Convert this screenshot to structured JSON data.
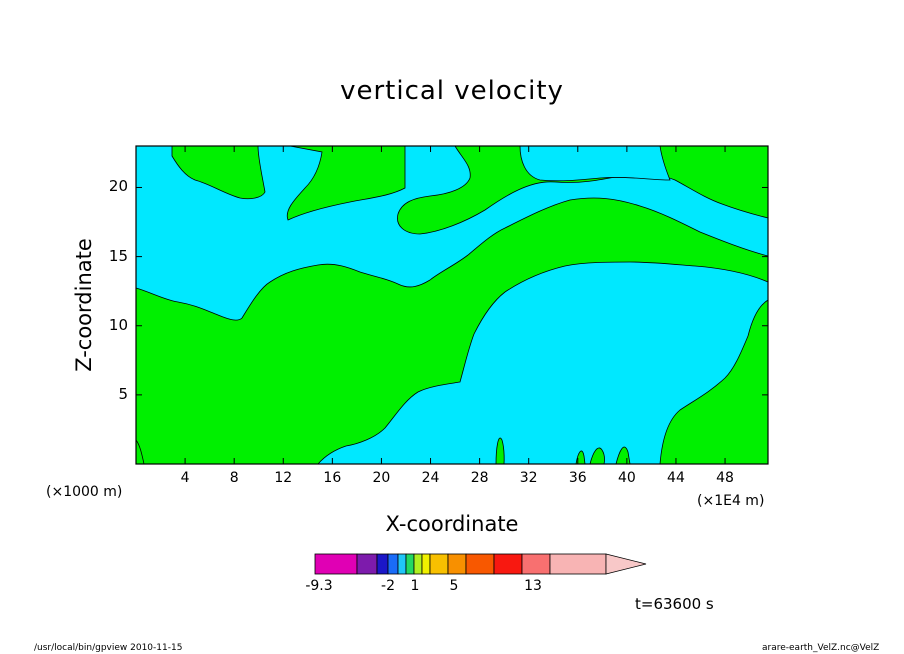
{
  "chart_data": {
    "type": "heatmap",
    "title": "vertical velocity",
    "xlabel": "X-coordinate",
    "ylabel": "Z-coordinate",
    "x_unit_left": "(×1000 m)",
    "x_unit_right": "(×1E4 m)",
    "xlim": [
      0,
      51.5
    ],
    "ylim": [
      0,
      23
    ],
    "x_ticks": [
      4,
      8,
      12,
      16,
      20,
      24,
      28,
      32,
      36,
      40,
      44,
      48
    ],
    "y_ticks": [
      5,
      10,
      15,
      20
    ],
    "time_label": "t=63600 s",
    "colors": {
      "cyan": "#00e8ff",
      "green": "#00f000",
      "line": "#000000"
    },
    "colorbar": {
      "colors": [
        "#e000b4",
        "#7d1bac",
        "#1b17c8",
        "#1a6cf8",
        "#20c6f8",
        "#22d862",
        "#b0f020",
        "#f0f000",
        "#f8c000",
        "#f89000",
        "#f85800",
        "#f81810",
        "#f87070",
        "#f8b4b4"
      ],
      "tick_labels": [
        "-9.3",
        "-2",
        "1",
        "5",
        "13"
      ]
    }
  },
  "footer": {
    "left": "/usr/local/bin/gpview   2010-11-15",
    "right": "arare-earth_VelZ.nc@VelZ"
  }
}
